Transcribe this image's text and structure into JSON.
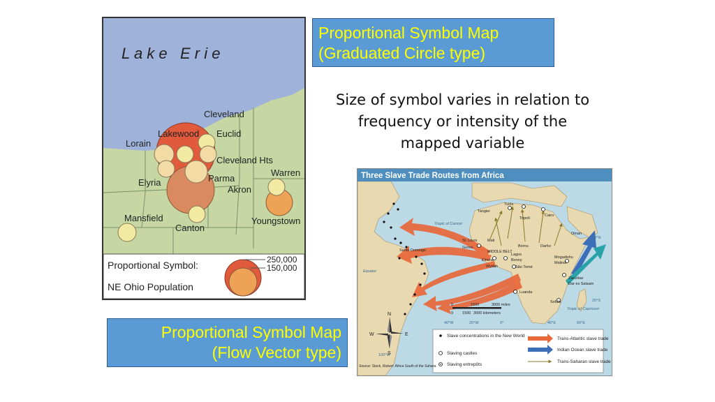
{
  "slide": {
    "title_graduated": [
      "Proportional Symbol Map",
      "(Graduated Circle type)"
    ],
    "title_flow": [
      "Proportional Symbol Map",
      "(Flow Vector type)"
    ],
    "description": [
      "Size of symbol varies in relation to",
      "frequency or intensity of the",
      "mapped variable"
    ]
  },
  "ohio_map": {
    "lake_label": "L a k e   E r i e",
    "cities": {
      "cleveland": "Cleveland",
      "lakewood": "Lakewood",
      "euclid": "Euclid",
      "lorain": "Lorain",
      "cleveland_hts": "Cleveland Hts",
      "warren": "Warren",
      "elyria": "Elyria",
      "parma": "Parma",
      "akron": "Akron",
      "youngstown": "Youngstown",
      "mansfield": "Mansfield",
      "canton": "Canton"
    },
    "legend": {
      "title": "Proportional Symbol:",
      "subtitle": "NE Ohio Population",
      "value_large": "250,000",
      "value_small": "150,000"
    },
    "colors": {
      "water": "#9fb2d9",
      "land": "#c7d7a4",
      "circle_large": "#e15a3c",
      "circle_mid": "#d98a60",
      "circle_orange": "#eda255",
      "circle_small": "#f3dba6",
      "circle_yellow": "#f2e9a2"
    }
  },
  "slave_map": {
    "title": "Three Slave Trade Routes from Africa",
    "labels": {
      "tropic_cancer": "Tropic of Cancer",
      "equator": "Equator",
      "tropic_capricorn": "Tropic of Capricorn",
      "tangier": "Tangier",
      "tunis": "Tunis",
      "tripoli": "Tripoli",
      "cairo": "Cairo",
      "oman": "Oman",
      "mali": "Mali",
      "st_louis": "St. Louis",
      "goree": "Goree",
      "santo_domingo": "Santo Domingo",
      "middle_belt": "MIDDLE BELT",
      "bornu": "Bornu",
      "darfur": "Darfur",
      "lagos": "Lagos",
      "bonny": "Bonny",
      "elmina": "Elmina",
      "wydah": "Wydah",
      "sao_tome": "São Tomé",
      "mogadishu": "Mogadishu",
      "malindi": "Malindi",
      "zanzibar": "Zanzibar",
      "dar_es_salaam": "Dar es Salaam",
      "luanda": "Luanda",
      "sofala": "Sofala",
      "lat_20n": "20°N",
      "lat_20s": "20°S",
      "lon_40w": "40°W",
      "lon_20w": "20°W",
      "lon_0": "0°",
      "lon_40e": "40°E",
      "lon_60e": "60°E",
      "lon_100w": "100°W",
      "compass_n": "N",
      "compass_s": "S",
      "compass_e": "E",
      "compass_w": "W"
    },
    "scale": {
      "zero_a": "0",
      "mid_a": "1500",
      "end_a": "3000 miles",
      "zero_b": "0",
      "mid_b": "1500",
      "end_b": "3000 kilometers"
    },
    "legend": {
      "concentrations": "Slave concentrations in the New World",
      "castles": "Slaving castles",
      "entrepots": "Slaving entrepôts",
      "transatlantic": "Trans-Atlantic slave trade",
      "indian_ocean": "Indian Ocean slave trade",
      "transsaharan": "Trans-Saharan slave trade"
    },
    "source": "Source: Stock, Robert: Africa South of the Sahara.",
    "colors": {
      "sea": "#bcd9e6",
      "land": "#e8d9b0",
      "title_bar": "#4e8fc0",
      "atlantic": "#e8683a",
      "indian": "#3d6fb8",
      "indian2": "#2aa3a8",
      "sahara": "#8a7a2a"
    }
  }
}
